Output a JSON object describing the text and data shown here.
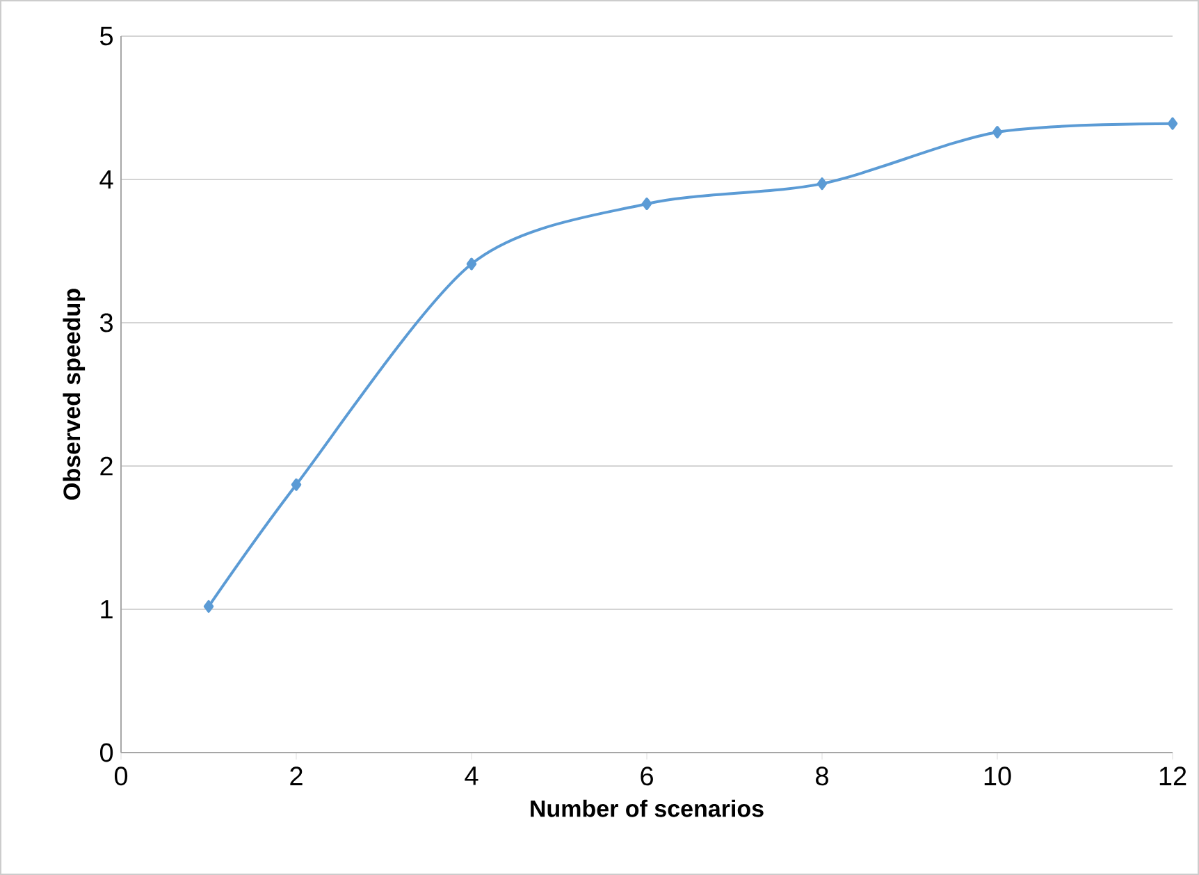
{
  "chart_data": {
    "type": "line",
    "xlabel": "Number of scenarios",
    "ylabel": "Observed speedup",
    "x": [
      1,
      2,
      4,
      6,
      8,
      10,
      12
    ],
    "series": [
      {
        "color": "#5b9bd5",
        "values": [
          1.02,
          1.87,
          3.41,
          3.83,
          3.97,
          4.33,
          4.39
        ]
      }
    ],
    "xlim": [
      0,
      12
    ],
    "xticks": [
      0,
      2,
      4,
      6,
      8,
      10,
      12
    ],
    "ylim": [
      0,
      5
    ],
    "yticks": [
      0,
      1,
      2,
      3,
      4,
      5
    ],
    "grid": "y",
    "marker": "diamond",
    "line_style": "solid"
  }
}
